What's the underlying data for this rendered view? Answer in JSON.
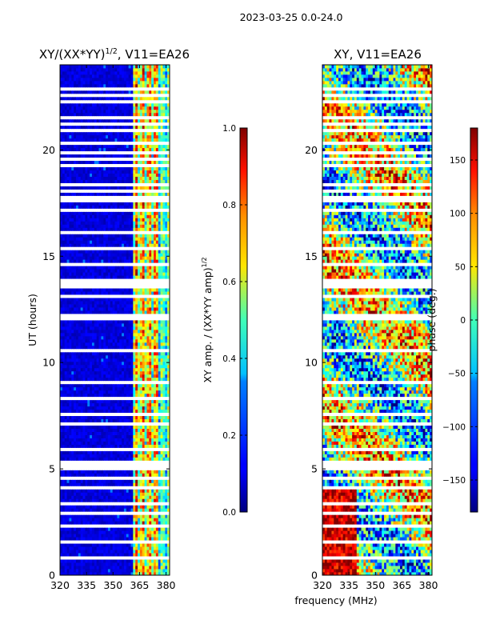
{
  "header": {
    "title": "2023-03-25 0.0-24.0"
  },
  "chart_data": [
    {
      "type": "heatmap",
      "title_main": "XY/(XX*YY)",
      "title_sup": "1/2",
      "title_tail": ", V11=EA26",
      "xlabel": "",
      "ylabel": "UT (hours)",
      "xlim": [
        320,
        382
      ],
      "ylim": [
        0,
        24
      ],
      "xticks": [
        "320",
        "335",
        "350",
        "365",
        "380"
      ],
      "xtick_values": [
        320,
        335,
        350,
        365,
        380
      ],
      "yticks": [
        "0",
        "5",
        "10",
        "15",
        "20"
      ],
      "ytick_values": [
        0,
        5,
        10,
        15,
        20
      ],
      "value_range": [
        0.0,
        1.0
      ],
      "colorbar": {
        "label_main": "XY amp. / (XX*YY amp)",
        "label_sup": "1/2",
        "ticks": [
          "0.0",
          "0.2",
          "0.4",
          "0.6",
          "0.8",
          "1.0"
        ],
        "tick_values": [
          0.0,
          0.2,
          0.4,
          0.6,
          0.8,
          1.0
        ],
        "range": [
          0.0,
          1.0
        ]
      }
    },
    {
      "type": "heatmap",
      "title_main": "XY, V11=EA26",
      "title_sup": "",
      "title_tail": "",
      "xlabel": "frequency (MHz)",
      "ylabel": "",
      "xlim": [
        320,
        382
      ],
      "ylim": [
        0,
        24
      ],
      "xticks": [
        "320",
        "335",
        "350",
        "365",
        "380"
      ],
      "xtick_values": [
        320,
        335,
        350,
        365,
        380
      ],
      "yticks": [
        "0",
        "5",
        "10",
        "15",
        "20"
      ],
      "ytick_values": [
        0,
        5,
        10,
        15,
        20
      ],
      "value_range": [
        -180,
        180
      ],
      "colorbar": {
        "label_main": "phase (deg.)",
        "label_sup": "",
        "ticks": [
          "−150",
          "−100",
          "−50",
          "0",
          "50",
          "100",
          "150"
        ],
        "tick_values": [
          -150,
          -100,
          -50,
          0,
          50,
          100,
          150
        ],
        "range": [
          -180,
          180
        ]
      }
    }
  ],
  "flagged_hours": [
    0.3,
    0.8,
    1.2,
    1.6,
    2.3,
    2.9,
    3.4,
    4.1,
    4.6,
    5.05,
    5.1,
    5.15,
    5.2,
    5.3,
    5.9,
    6.6,
    7.1,
    7.5,
    7.6,
    8.3,
    9.1,
    9.9,
    10.6,
    11.4,
    12.1,
    12.2,
    12.3,
    12.9,
    13.1,
    13.6,
    13.65,
    13.7,
    13.8,
    13.9,
    14.6,
    15.4,
    16.1,
    16.5,
    16.8,
    17.2,
    17.4,
    17.6,
    17.8,
    18.1,
    18.4,
    18.9,
    19.3,
    19.6,
    19.9,
    20.3,
    20.9,
    21.2,
    21.5,
    21.9,
    22.3,
    22.6,
    22.9,
    23.4
  ]
}
